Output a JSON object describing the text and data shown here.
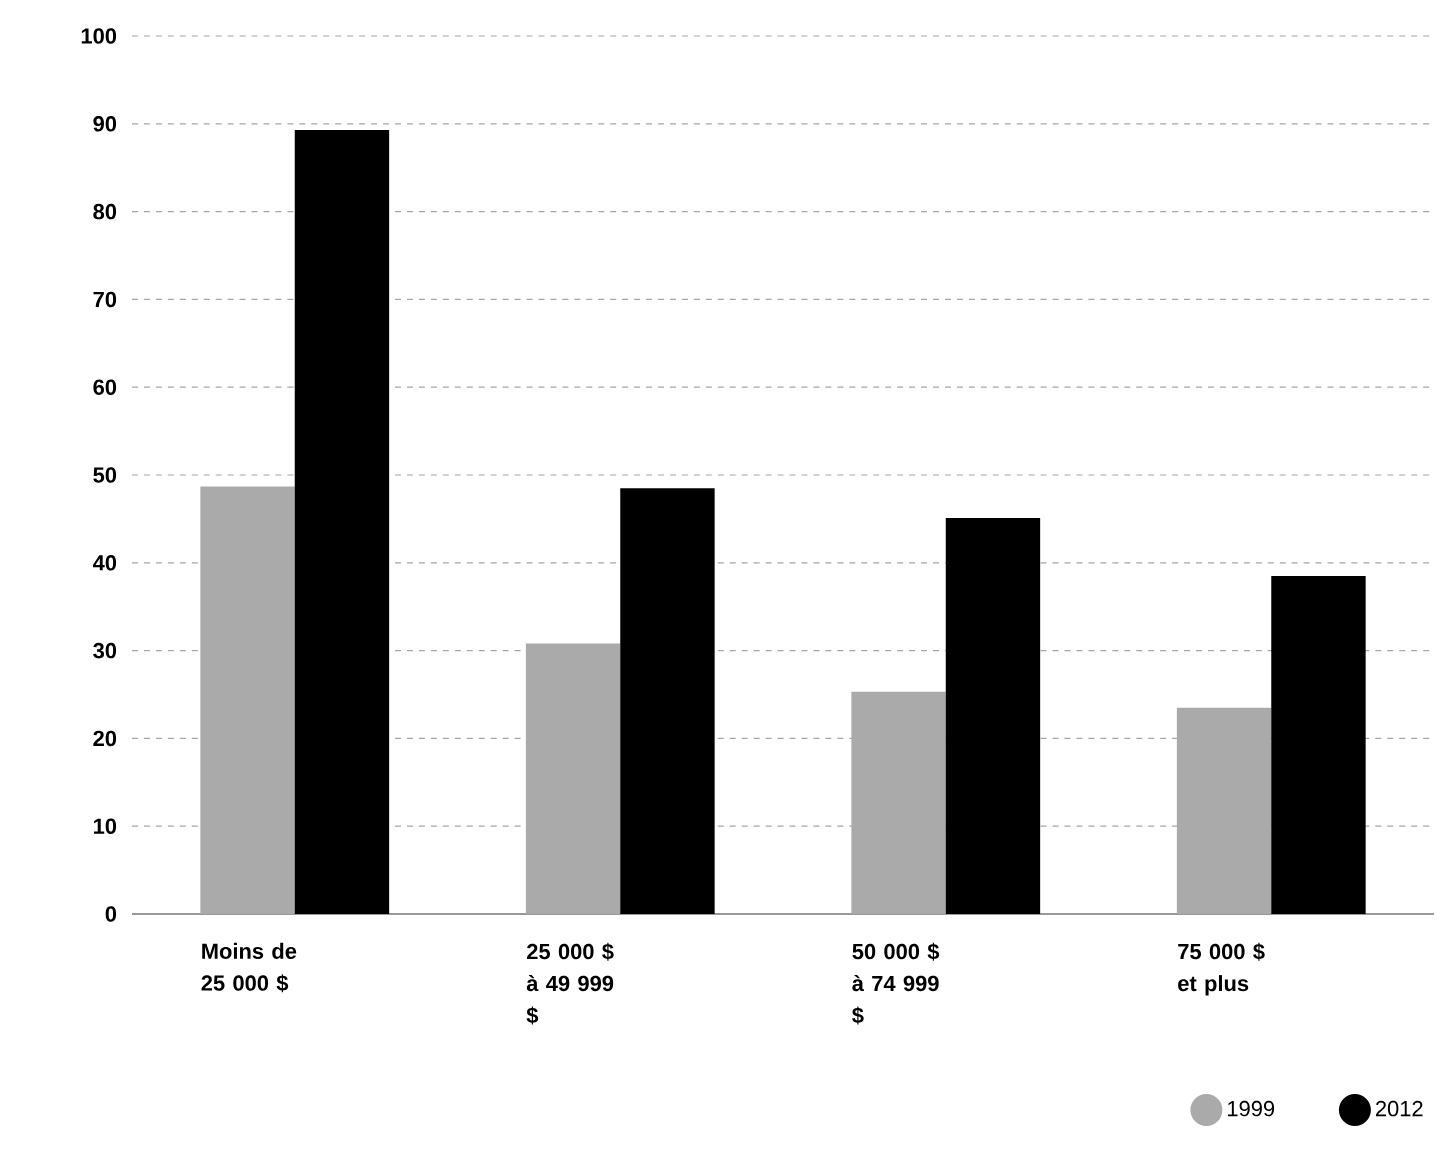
{
  "chart_data": {
    "type": "bar",
    "categories": [
      "Moins de 25 000 $",
      "25 000 $ à 49 999 $",
      "50 000 $ à 74 999 $",
      "75 000 $ et plus"
    ],
    "series": [
      {
        "name": "1999",
        "color": "#aaaaaa",
        "values": [
          48.7,
          30.8,
          25.3,
          23.5
        ]
      },
      {
        "name": "2012",
        "color": "#000000",
        "values": [
          89.3,
          48.5,
          45.1,
          38.5
        ]
      }
    ],
    "ylim": [
      0,
      100
    ],
    "yticks": [
      0,
      10,
      20,
      30,
      40,
      50,
      60,
      70,
      80,
      90,
      100
    ],
    "grid": "y",
    "legend": "bottom right",
    "marker": "circle"
  }
}
